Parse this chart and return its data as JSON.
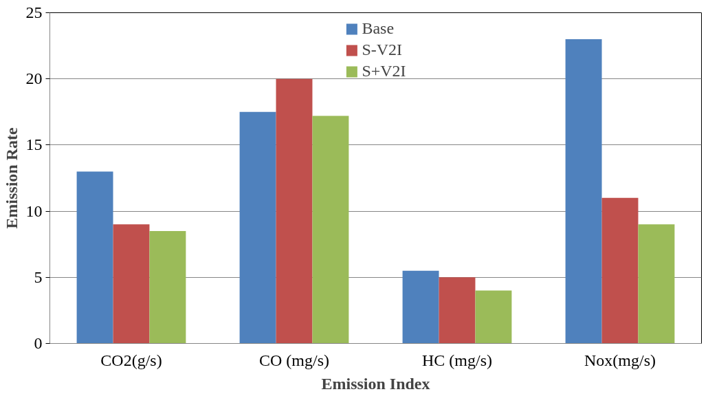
{
  "chart_data": {
    "type": "bar",
    "xlabel": "Emission Index",
    "ylabel": "Emission Rate",
    "categories": [
      "CO2(g/s)",
      "CO (mg/s)",
      "HC (mg/s)",
      "Nox(mg/s)"
    ],
    "series": [
      {
        "name": "Base",
        "color": "#4f81bd",
        "values": [
          13,
          17.5,
          5.5,
          23
        ]
      },
      {
        "name": "S-V2I",
        "color": "#c0504d",
        "values": [
          9,
          20,
          5,
          11
        ]
      },
      {
        "name": "S+V2I",
        "color": "#9bbb59",
        "values": [
          8.5,
          17.2,
          4,
          9
        ]
      }
    ],
    "ylim": [
      0,
      25
    ],
    "yticks": [
      0,
      5,
      10,
      15,
      20,
      25
    ],
    "grid": "y",
    "legend": "top"
  }
}
